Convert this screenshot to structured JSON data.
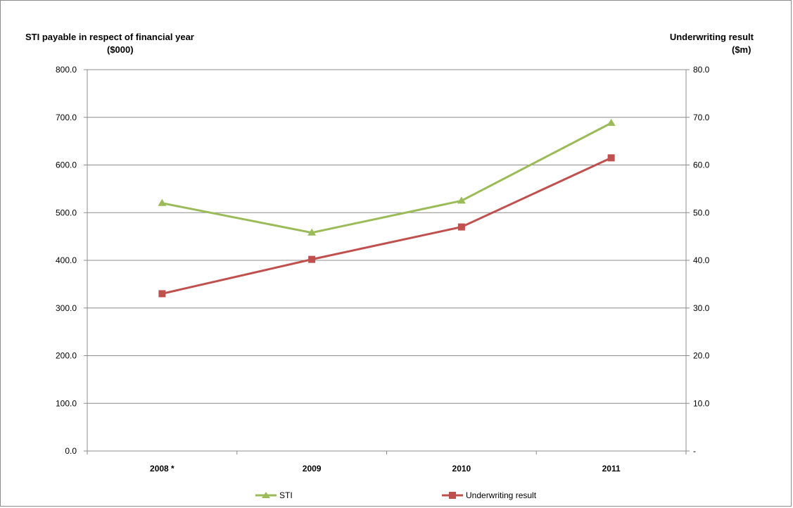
{
  "chart_data": {
    "type": "line",
    "categories": [
      "2008 *",
      "2009",
      "2010",
      "2011"
    ],
    "y_left": {
      "title_line1": "STI payable in respect of financial year",
      "title_line2": "($000)",
      "ylim": [
        0,
        800
      ],
      "ticks": [
        0,
        100,
        200,
        300,
        400,
        500,
        600,
        700,
        800
      ],
      "tick_labels": [
        "0.0",
        "100.0",
        "200.0",
        "300.0",
        "400.0",
        "500.0",
        "600.0",
        "700.0",
        "800.0"
      ]
    },
    "y_right": {
      "title_line1": "Underwriting result",
      "title_line2": "($m)",
      "ylim": [
        0,
        80
      ],
      "ticks": [
        0,
        10,
        20,
        30,
        40,
        50,
        60,
        70,
        80
      ],
      "tick_labels": [
        "-",
        "10.0",
        "20.0",
        "30.0",
        "40.0",
        "50.0",
        "60.0",
        "70.0",
        "80.0"
      ]
    },
    "series": [
      {
        "name": "STI",
        "axis": "left",
        "color": "#9bbb59",
        "marker": "triangle",
        "values": [
          520,
          458,
          525,
          688
        ]
      },
      {
        "name": "Underwriting result",
        "axis": "right",
        "color": "#c0504d",
        "marker": "square",
        "values": [
          33.0,
          40.2,
          47.0,
          61.5
        ]
      }
    ],
    "grid": true,
    "legend_position": "bottom"
  }
}
